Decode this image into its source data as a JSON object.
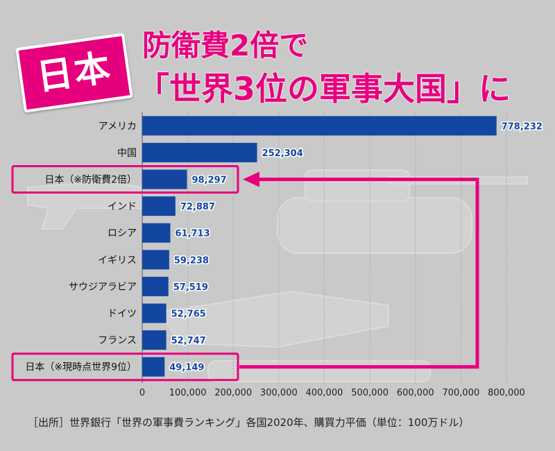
{
  "badge": "日本",
  "title_line1": "防衛費2倍で",
  "title_line2": "「世界3位の軍事大国」に",
  "footer": "［出所］世界銀行「世界の軍事費ランキング」各国2020年、購買力平価（単位：100万ドル）",
  "colors": {
    "bar": "#1346a0",
    "accent": "#e6007e",
    "value": "#1346a0"
  },
  "chart_data": {
    "type": "bar",
    "orientation": "horizontal",
    "categories": [
      "アメリカ",
      "中国",
      "日本（※防衛費2倍）",
      "インド",
      "ロシア",
      "イギリス",
      "サウジアラビア",
      "ドイツ",
      "フランス",
      "日本（※現時点世界9位）"
    ],
    "values": [
      778232,
      252304,
      98297,
      72887,
      61713,
      59238,
      57519,
      52765,
      52747,
      49149
    ],
    "value_labels": [
      "778,232",
      "252,304",
      "98,297",
      "72,887",
      "61,713",
      "59,238",
      "57,519",
      "52,765",
      "52,747",
      "49,149"
    ],
    "highlighted": [
      2,
      9
    ],
    "xlim": [
      0,
      800000
    ],
    "xticks": [
      0,
      100000,
      200000,
      300000,
      400000,
      500000,
      600000,
      700000,
      800000
    ],
    "xtick_labels": [
      "0",
      "100,000",
      "200,000",
      "300,000",
      "400,000",
      "500,000",
      "600,000",
      "700,000",
      "800,000"
    ],
    "grid": true
  }
}
